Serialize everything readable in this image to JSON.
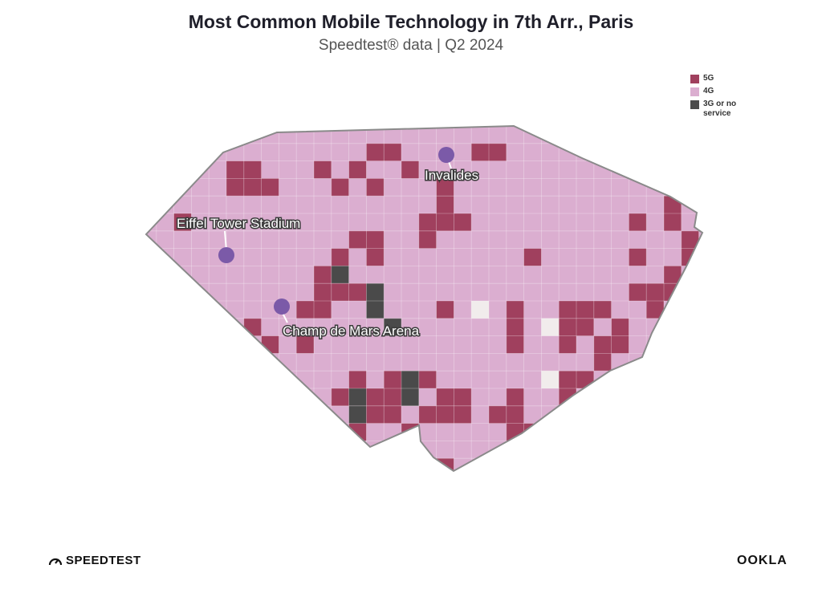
{
  "title": "Most Common Mobile Technology in 7th Arr., Paris",
  "subtitle": "Speedtest® data | Q2 2024",
  "legend": {
    "items": [
      {
        "label": "5G",
        "color": "#a0405e"
      },
      {
        "label": "4G",
        "color": "#dbaed0"
      },
      {
        "label": "3G or no service",
        "color": "#4a4a4a"
      }
    ]
  },
  "colors": {
    "5g": "#a0405e",
    "4g": "#dbaed0",
    "3g": "#4a4a4a",
    "no_data": "#f1ecec",
    "outline": "#8a8a8a",
    "poi_marker": "#7b5aa8"
  },
  "points_of_interest": [
    {
      "name": "Invalides",
      "icon": "location-dot-icon"
    },
    {
      "name": "Eiffel Tower Stadium",
      "icon": "location-dot-icon"
    },
    {
      "name": "Champ de Mars Arena",
      "icon": "location-dot-icon"
    }
  ],
  "branding": {
    "left": "SPEEDTEST",
    "left_icon": "speedometer-icon",
    "right": "OOKLA"
  }
}
